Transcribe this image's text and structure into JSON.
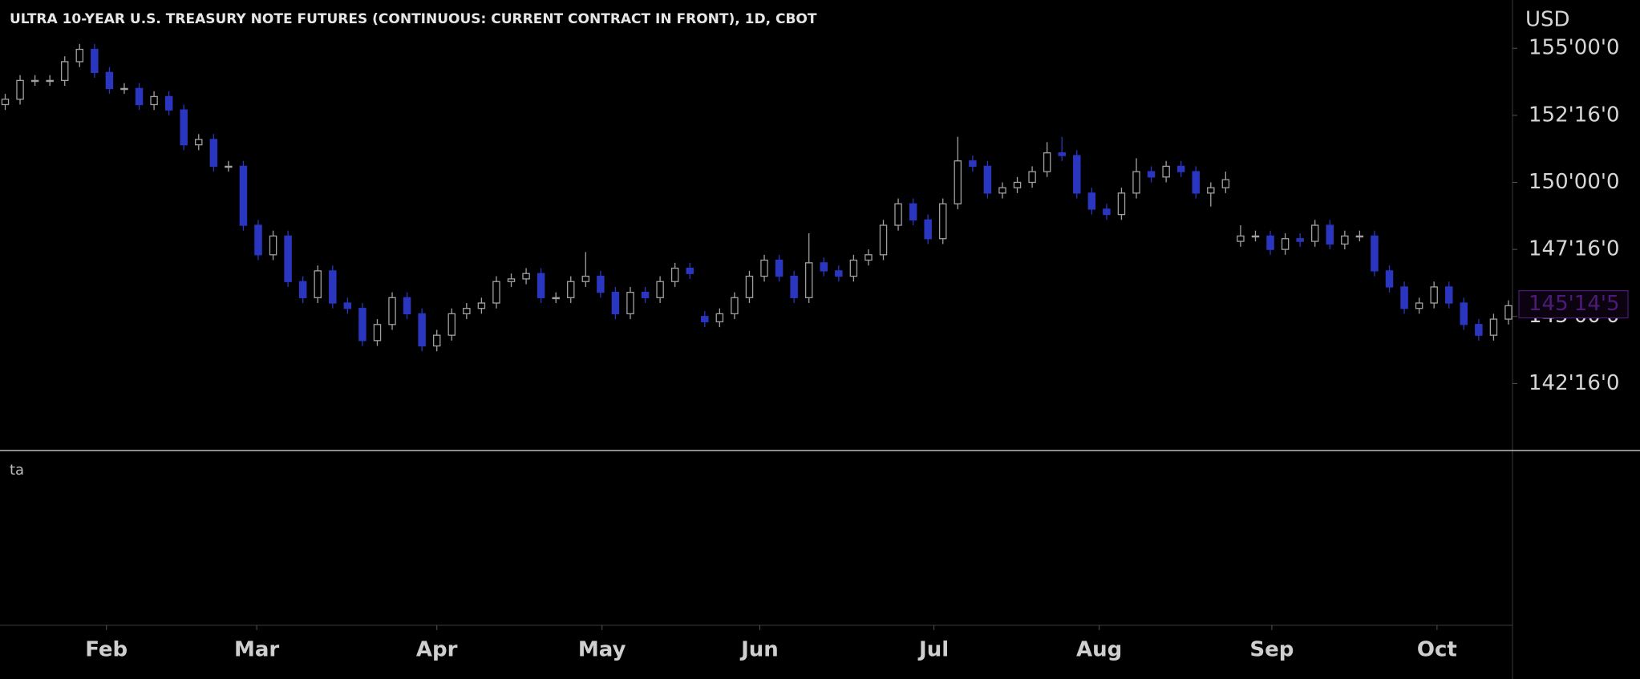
{
  "chart_data": {
    "type": "candlestick",
    "title": "ULTRA 10-YEAR U.S. TREASURY NOTE FUTURES (CONTINUOUS: CURRENT CONTRACT IN FRONT), 1D, CBOT",
    "currency": "USD",
    "indicator_label": "ta",
    "up_color": "#a0a0a0",
    "down_color": "#2a36c0",
    "last_price_color": "#4e1a78",
    "open": [
      152.9,
      153.1,
      153.8,
      153.8,
      153.8,
      154.5,
      154.96,
      154.1,
      153.5,
      153.5,
      152.9,
      153.2,
      152.7,
      151.4,
      151.6,
      150.6,
      150.6,
      148.4,
      147.3,
      148.0,
      146.3,
      145.7,
      146.7,
      145.5,
      145.3,
      144.1,
      144.7,
      145.7,
      145.1,
      143.9,
      144.3,
      145.1,
      145.3,
      145.5,
      146.3,
      146.4,
      146.6,
      145.7,
      145.7,
      146.3,
      146.5,
      145.9,
      145.1,
      145.9,
      145.7,
      146.3,
      146.8,
      145.0,
      144.8,
      145.1,
      145.7,
      146.5,
      147.1,
      146.5,
      145.7,
      147.0,
      146.7,
      146.5,
      147.1,
      147.3,
      148.4,
      149.2,
      148.6,
      147.9,
      149.2,
      150.8,
      150.6,
      149.6,
      149.8,
      150.0,
      150.4,
      151.1,
      151.0,
      149.6,
      149.0,
      148.8,
      149.6,
      150.4,
      150.2,
      150.6,
      150.4,
      149.6,
      149.8,
      147.8,
      148.0,
      148.0,
      147.5,
      147.9,
      147.8,
      148.4,
      147.7,
      148.0,
      148.0,
      146.7,
      146.1,
      145.3,
      145.5,
      146.1,
      145.5,
      144.7,
      144.3,
      144.9
    ],
    "high": [
      153.3,
      154.0,
      154.0,
      154.0,
      154.7,
      155.16,
      155.16,
      154.3,
      153.7,
      153.7,
      153.4,
      153.4,
      152.9,
      151.8,
      151.8,
      150.8,
      150.8,
      148.6,
      148.2,
      148.2,
      146.5,
      146.9,
      146.9,
      145.7,
      145.5,
      144.9,
      145.9,
      145.9,
      145.3,
      144.5,
      145.3,
      145.5,
      145.7,
      146.5,
      146.6,
      146.8,
      146.8,
      145.9,
      146.5,
      147.4,
      146.7,
      146.1,
      146.1,
      146.1,
      146.5,
      147.0,
      147.0,
      145.2,
      145.3,
      145.9,
      146.7,
      147.3,
      147.3,
      146.7,
      148.1,
      147.2,
      146.9,
      147.3,
      147.5,
      148.6,
      149.4,
      149.4,
      148.8,
      149.4,
      151.7,
      151.0,
      150.8,
      150.0,
      150.2,
      150.6,
      151.5,
      151.7,
      151.2,
      149.8,
      149.2,
      149.8,
      150.9,
      150.6,
      150.8,
      150.8,
      150.6,
      150.0,
      150.4,
      148.4,
      148.2,
      148.2,
      148.1,
      148.1,
      148.6,
      148.6,
      148.2,
      148.2,
      148.2,
      146.9,
      146.3,
      145.7,
      146.3,
      146.3,
      145.7,
      144.9,
      145.1,
      145.6
    ],
    "low": [
      152.7,
      152.9,
      153.6,
      153.6,
      153.6,
      154.3,
      153.9,
      153.3,
      153.3,
      152.7,
      152.7,
      152.5,
      151.2,
      151.2,
      150.4,
      150.4,
      148.2,
      147.1,
      147.1,
      146.1,
      145.5,
      145.5,
      145.3,
      145.1,
      143.9,
      143.9,
      144.5,
      144.9,
      143.7,
      143.7,
      144.1,
      144.9,
      145.1,
      145.3,
      146.1,
      146.2,
      145.5,
      145.5,
      145.5,
      146.1,
      145.7,
      144.9,
      144.9,
      145.5,
      145.5,
      146.1,
      146.4,
      144.6,
      144.6,
      144.9,
      145.5,
      146.3,
      146.3,
      145.5,
      145.5,
      146.5,
      146.3,
      146.3,
      146.9,
      147.1,
      148.2,
      148.4,
      147.7,
      147.7,
      149.0,
      150.4,
      149.4,
      149.4,
      149.6,
      149.8,
      150.2,
      150.8,
      149.4,
      148.8,
      148.6,
      148.6,
      149.4,
      150.0,
      150.0,
      150.2,
      149.4,
      149.1,
      149.6,
      147.6,
      147.8,
      147.3,
      147.3,
      147.6,
      147.6,
      147.5,
      147.5,
      147.8,
      146.5,
      145.9,
      145.1,
      145.1,
      145.3,
      145.3,
      144.5,
      144.1,
      144.1,
      144.7
    ],
    "close": [
      153.1,
      153.8,
      153.8,
      153.8,
      154.5,
      154.96,
      154.1,
      153.5,
      153.5,
      152.9,
      153.2,
      152.7,
      151.4,
      151.6,
      150.6,
      150.6,
      148.4,
      147.3,
      148.0,
      146.3,
      145.7,
      146.7,
      145.5,
      145.3,
      144.1,
      144.7,
      145.7,
      145.1,
      143.9,
      144.3,
      145.1,
      145.3,
      145.5,
      146.3,
      146.4,
      146.6,
      145.7,
      145.7,
      146.3,
      146.5,
      145.9,
      145.1,
      145.9,
      145.7,
      146.3,
      146.8,
      146.6,
      144.8,
      145.1,
      145.7,
      146.5,
      147.1,
      146.5,
      145.7,
      147.0,
      146.7,
      146.5,
      147.1,
      147.3,
      148.4,
      149.2,
      148.6,
      147.9,
      149.2,
      150.8,
      150.6,
      149.6,
      149.8,
      150.0,
      150.4,
      151.1,
      151.0,
      149.6,
      149.0,
      148.8,
      149.6,
      150.4,
      150.2,
      150.6,
      150.4,
      149.6,
      149.8,
      150.1,
      148.0,
      148.0,
      147.5,
      147.9,
      147.8,
      148.4,
      147.7,
      148.0,
      148.0,
      146.7,
      146.1,
      145.3,
      145.5,
      146.1,
      145.5,
      144.7,
      144.3,
      144.9,
      145.4
    ],
    "ylim": [
      140,
      156.8
    ],
    "yticks": [
      {
        "value": 155,
        "label": "155'00'0"
      },
      {
        "value": 152.5,
        "label": "152'16'0"
      },
      {
        "value": 150,
        "label": "150'00'0"
      },
      {
        "value": 147.5,
        "label": "147'16'0"
      },
      {
        "value": 145,
        "label": "145'00'0"
      },
      {
        "value": 142.5,
        "label": "142'16'0"
      }
    ],
    "last_price": {
      "value": 145.453125,
      "label": "145'14'5"
    },
    "xlim": [
      -0.35,
      101.27
    ],
    "xticks": [
      {
        "value": 6.8,
        "label": "Feb"
      },
      {
        "value": 16.9,
        "label": "Mar"
      },
      {
        "value": 29.0,
        "label": "Apr"
      },
      {
        "value": 40.1,
        "label": "May"
      },
      {
        "value": 50.7,
        "label": "Jun"
      },
      {
        "value": 62.4,
        "label": "Jul"
      },
      {
        "value": 73.5,
        "label": "Aug"
      },
      {
        "value": 85.1,
        "label": "Sep"
      },
      {
        "value": 96.2,
        "label": "Oct"
      }
    ]
  }
}
